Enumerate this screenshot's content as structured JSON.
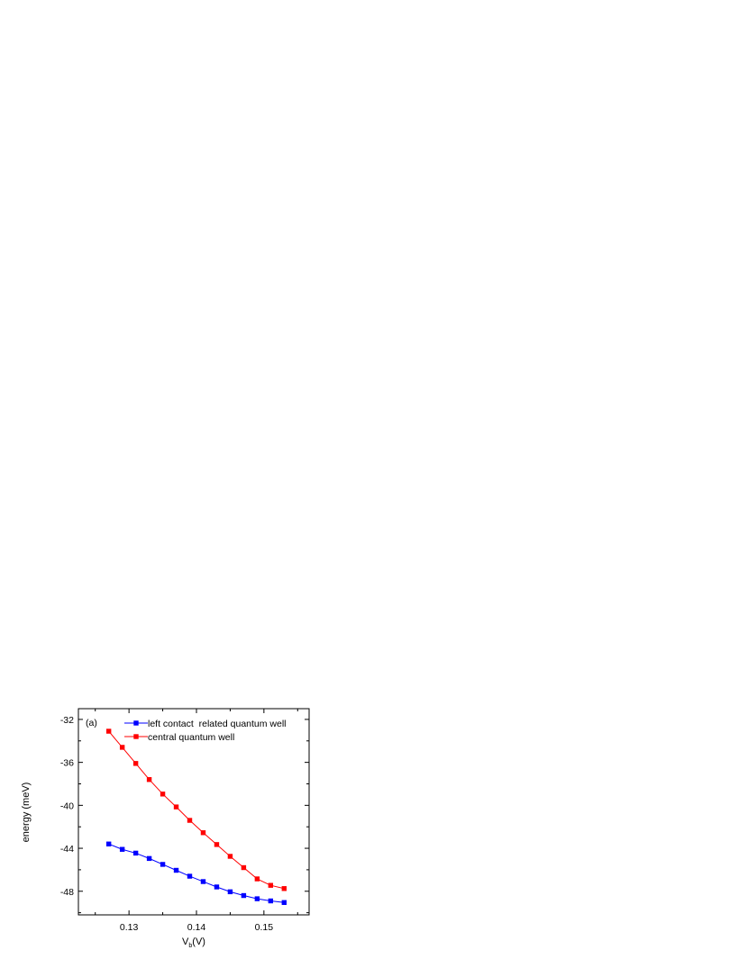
{
  "chart_data": {
    "type": "line",
    "panel_label": "(a)",
    "xlabel_main": "V",
    "xlabel_sub": "b",
    "xlabel_tail": "(V)",
    "ylabel": "energy (meV)",
    "xlim": [
      0.1225,
      0.1567
    ],
    "ylim": [
      -50.2,
      -31.0
    ],
    "xticks": [
      0.13,
      0.14,
      0.15
    ],
    "xtick_labels": [
      "0.13",
      "0.14",
      "0.15"
    ],
    "yticks": [
      -32,
      -36,
      -40,
      -44,
      -48
    ],
    "ytick_labels": [
      "-32",
      "-36",
      "-40",
      "-44",
      "-48"
    ],
    "grid": false,
    "legend_position": "top-right",
    "x": [
      0.127,
      0.129,
      0.131,
      0.133,
      0.135,
      0.137,
      0.139,
      0.141,
      0.143,
      0.145,
      0.147,
      0.149,
      0.151,
      0.153
    ],
    "series": [
      {
        "name": "left contact  related quantum well",
        "color": "#0000ff",
        "marker": "square",
        "values": [
          -43.6,
          -44.1,
          -44.45,
          -44.95,
          -45.5,
          -46.05,
          -46.6,
          -47.1,
          -47.6,
          -48.05,
          -48.4,
          -48.7,
          -48.9,
          -49.05
        ]
      },
      {
        "name": "central quantum well",
        "color": "#ff0000",
        "marker": "square",
        "values": [
          -33.1,
          -34.6,
          -36.1,
          -37.6,
          -38.95,
          -40.15,
          -41.4,
          -42.55,
          -43.65,
          -44.75,
          -45.8,
          -46.85,
          -47.45,
          -47.75
        ]
      }
    ]
  }
}
